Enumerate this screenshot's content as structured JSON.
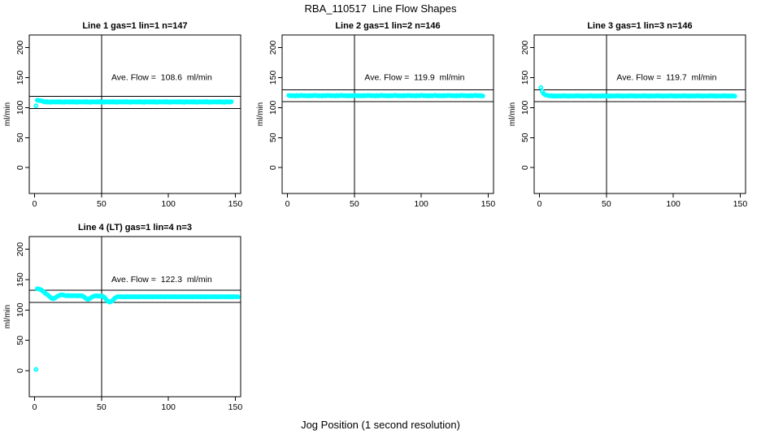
{
  "figure": {
    "title": "RBA_110517  Line Flow Shapes",
    "xlabel": "Jog Position (1 second resolution)",
    "colors": {
      "background": "#ffffff",
      "point": "#00ffff",
      "line": "#000000"
    },
    "axis": {
      "x_ticks": [
        0,
        50,
        100,
        150
      ],
      "y_ticks": [
        0,
        50,
        100,
        150,
        200
      ],
      "x_range": [
        -4,
        154
      ],
      "y_range": [
        -43,
        221
      ]
    }
  },
  "chart_data": [
    {
      "type": "scatter",
      "title": "Line 1 gas=1 lin=1 n=147",
      "n": 147,
      "ave_flow": 108.6,
      "annotation": "Ave. Flow =  108.6  ml/min",
      "ylabel": "ml/min",
      "vline_x": 50,
      "hlines": [
        118.6,
        98.6
      ],
      "y": [
        103,
        112.4,
        112,
        111.6,
        111.2,
        110.8,
        109.9,
        109.2,
        110.1,
        109,
        109.6,
        108.9,
        110,
        109.3,
        109.8,
        109.1,
        109.9,
        109.2,
        110.1,
        109,
        109.6,
        108.9,
        110,
        109.3,
        109.8,
        109.1,
        109.9,
        109.2,
        110.1,
        109,
        109.6,
        108.9,
        110,
        109.3,
        109.8,
        109.1,
        109.9,
        109.2,
        110.1,
        109,
        109.6,
        108.9,
        110,
        109.3,
        109.8,
        109.1,
        109.9,
        109.2,
        110.1,
        109,
        109.6,
        108.9,
        110,
        109.3,
        109.8,
        109.1,
        109.9,
        109.2,
        110.1,
        109,
        109.6,
        108.9,
        110,
        109.3,
        109.8,
        109.1,
        109.9,
        109.2,
        110.1,
        109,
        109.6,
        108.9,
        110,
        109.3,
        109.8,
        109.1,
        109.9,
        109.2,
        110.1,
        109,
        109.6,
        108.9,
        110,
        109.3,
        109.8,
        109.1,
        109.9,
        109.2,
        110.1,
        109,
        109.6,
        108.9,
        110,
        109.3,
        109.8,
        109.1,
        109.9,
        109.2,
        110.1,
        109,
        109.6,
        108.9,
        110,
        109.3,
        109.8,
        109.1,
        109.9,
        109.2,
        110.1,
        109,
        109.6,
        108.9,
        110,
        109.3,
        109.8,
        109.1,
        109.9,
        109.2,
        110.1,
        109,
        109.6,
        108.9,
        110,
        109.3,
        109.8,
        109.1,
        109.9,
        109.2,
        110.1,
        109,
        109.6,
        108.9,
        110,
        109.3,
        109.8,
        109.1,
        109.9,
        109.2,
        110.1,
        109,
        109.6,
        108.9,
        110,
        109.3,
        109.8,
        109.1,
        109.9
      ]
    },
    {
      "type": "scatter",
      "title": "Line 2 gas=1 lin=2 n=146",
      "n": 146,
      "ave_flow": 119.9,
      "annotation": "Ave. Flow =  119.9  ml/min",
      "ylabel": "ml/min",
      "vline_x": 50,
      "hlines": [
        129.9,
        109.9
      ],
      "y": [
        120.3,
        119.7,
        120.1,
        119.5,
        120,
        119.4,
        120.2,
        119.6,
        119.9,
        120.4,
        120.3,
        119.7,
        120.1,
        119.5,
        120,
        119.4,
        120.2,
        119.6,
        119.9,
        120.4,
        120.3,
        119.7,
        120.1,
        119.5,
        120,
        119.4,
        120.2,
        119.6,
        119.9,
        120.4,
        120.3,
        119.7,
        120.1,
        119.5,
        120,
        119.4,
        120.2,
        119.6,
        119.9,
        120.4,
        120.3,
        119.7,
        120.1,
        119.5,
        120,
        119.4,
        120.2,
        119.6,
        119.9,
        120.4,
        120.3,
        119.7,
        120.1,
        119.5,
        120,
        119.4,
        120.2,
        119.6,
        119.9,
        120.4,
        120.3,
        119.7,
        120.1,
        119.5,
        120,
        119.4,
        120.2,
        119.6,
        119.9,
        120.4,
        120.3,
        119.7,
        120.1,
        119.5,
        120,
        119.4,
        120.2,
        119.6,
        119.9,
        120.4,
        120.3,
        119.7,
        120.1,
        119.5,
        120,
        119.4,
        120.2,
        119.6,
        119.9,
        120.4,
        120.3,
        119.7,
        120.1,
        119.5,
        120,
        119.4,
        120.2,
        119.6,
        119.9,
        120.4,
        120.3,
        119.7,
        120.1,
        119.5,
        120,
        119.4,
        120.2,
        119.6,
        119.9,
        120.4,
        120.3,
        119.7,
        120.1,
        119.5,
        120,
        119.4,
        120.2,
        119.6,
        119.9,
        120.4,
        120.3,
        119.7,
        120.1,
        119.5,
        120,
        119.4,
        120.2,
        119.6,
        119.9,
        120.4,
        120.3,
        119.7,
        120.1,
        119.5,
        120,
        119.4,
        120.2,
        119.6,
        119.9,
        120.4,
        120.3,
        119.7,
        120.1,
        119.5,
        120,
        119.4
      ]
    },
    {
      "type": "scatter",
      "title": "Line 3 gas=1 lin=3 n=146",
      "n": 146,
      "ave_flow": 119.7,
      "annotation": "Ave. Flow =  119.7  ml/min",
      "ylabel": "ml/min",
      "vline_x": 50,
      "hlines": [
        129.7,
        109.7
      ],
      "y": [
        133.5,
        127,
        123.5,
        121.5,
        120.8,
        120.3,
        119.9,
        119.3,
        120,
        119.1,
        119.7,
        118.9,
        119.8,
        119.2,
        119.6,
        119,
        119.9,
        119.3,
        120,
        119.1,
        119.7,
        118.9,
        119.8,
        119.2,
        119.6,
        119,
        119.9,
        119.3,
        120,
        119.1,
        119.7,
        118.9,
        119.8,
        119.2,
        119.6,
        119,
        119.9,
        119.3,
        120,
        119.1,
        119.7,
        118.9,
        119.8,
        119.2,
        119.6,
        119,
        119.9,
        119.3,
        120,
        119.1,
        119.7,
        118.9,
        119.8,
        119.2,
        119.6,
        119,
        119.9,
        119.3,
        120,
        119.1,
        119.7,
        118.9,
        119.8,
        119.2,
        119.6,
        119,
        119.9,
        119.3,
        120,
        119.1,
        119.7,
        118.9,
        119.8,
        119.2,
        119.6,
        119,
        119.9,
        119.3,
        120,
        119.1,
        119.7,
        118.9,
        119.8,
        119.2,
        119.6,
        119,
        119.9,
        119.3,
        120,
        119.1,
        119.7,
        118.9,
        119.8,
        119.2,
        119.6,
        119,
        119.9,
        119.3,
        120,
        119.1,
        119.7,
        118.9,
        119.8,
        119.2,
        119.6,
        119,
        119.9,
        119.3,
        120,
        119.1,
        119.7,
        118.9,
        119.8,
        119.2,
        119.6,
        119,
        119.9,
        119.3,
        120,
        119.1,
        119.7,
        118.9,
        119.8,
        119.2,
        119.6,
        119,
        119.9,
        119.3,
        120,
        119.1,
        119.7,
        118.9,
        119.8,
        119.2,
        119.6,
        119,
        119.9,
        119.3,
        120,
        119.1,
        119.7,
        118.9,
        119.8,
        119.2,
        119.6,
        119
      ]
    },
    {
      "type": "scatter",
      "title": "Line 4 (LT) gas=1 lin=4 n=3",
      "n": 3,
      "ave_flow": 122.3,
      "annotation": "Ave. Flow =  122.3  ml/min",
      "ylabel": "ml/min",
      "vline_x": 50,
      "hlines": [
        132.3,
        112.3
      ],
      "y": [
        2,
        135,
        134.6,
        134,
        133,
        131.5,
        129.5,
        127.5,
        126,
        124.5,
        122.5,
        120.5,
        119,
        118.5,
        119.5,
        121,
        122.5,
        123.5,
        124.5,
        125,
        124.8,
        124.3,
        123.8,
        123.4,
        123.9,
        123.3,
        123.7,
        123.2,
        123.8,
        123.4,
        123.6,
        123.1,
        123.7,
        123.3,
        123.5,
        123,
        121.5,
        119.5,
        118,
        117.5,
        118.5,
        120,
        121.5,
        122.5,
        123,
        123.4,
        123.1,
        122.8,
        123.2,
        122.9,
        122.6,
        121,
        118.5,
        116,
        114,
        113,
        113.5,
        115,
        117.5,
        119.5,
        121,
        122,
        122,
        121.6,
        122.1,
        121.5,
        121.9,
        121.4,
        122.2,
        121.7,
        122,
        121.6,
        122,
        121.6,
        122.1,
        121.5,
        121.9,
        121.4,
        122.2,
        121.7,
        122,
        121.6,
        122,
        121.6,
        122.1,
        121.5,
        121.9,
        121.4,
        122.2,
        121.7,
        122,
        121.6,
        122,
        121.6,
        122.1,
        121.5,
        121.9,
        121.4,
        122.2,
        121.7,
        122,
        121.6,
        122,
        121.6,
        122.1,
        121.5,
        121.9,
        121.4,
        122.2,
        121.7,
        122,
        121.6,
        122,
        121.6,
        122.1,
        121.5,
        121.9,
        121.4,
        122.2,
        121.7,
        122,
        121.6,
        122,
        121.6,
        122.1,
        121.5,
        121.9,
        121.4,
        122.2,
        121.7,
        122,
        121.6,
        122,
        121.6,
        122.1,
        121.5,
        121.9,
        121.4,
        122.2,
        121.7,
        122,
        121.6,
        122,
        121.6,
        122.1,
        121.5,
        121.9,
        121.4,
        122.2,
        121.7,
        122,
        121.6
      ]
    }
  ]
}
